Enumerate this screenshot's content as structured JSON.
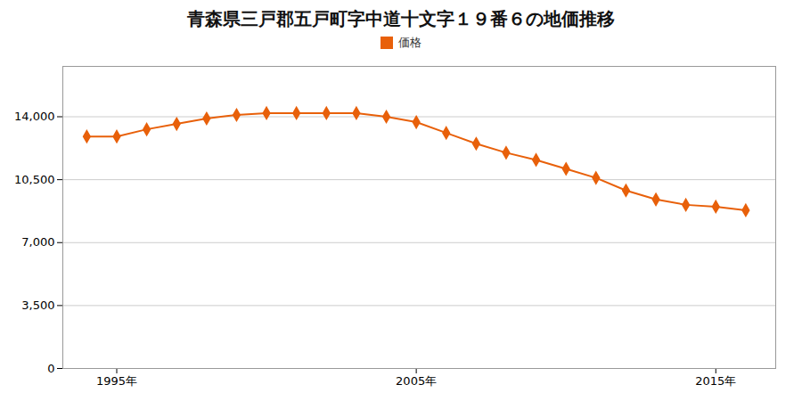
{
  "chart_data": {
    "type": "line",
    "title": "青森県三戸郡五戸町字中道十文字１９番６の地価推移",
    "x": [
      1994,
      1995,
      1996,
      1997,
      1998,
      1999,
      2000,
      2001,
      2002,
      2003,
      2004,
      2005,
      2006,
      2007,
      2008,
      2009,
      2010,
      2011,
      2012,
      2013,
      2014,
      2015,
      2016
    ],
    "series": [
      {
        "name": "価格",
        "color": "#e8600a",
        "marker": "diamond",
        "values": [
          12900,
          12900,
          13300,
          13600,
          13900,
          14100,
          14200,
          14200,
          14200,
          14200,
          14000,
          13700,
          13100,
          12500,
          12000,
          11600,
          11100,
          10600,
          9900,
          9400,
          9100,
          9000,
          8800
        ]
      }
    ],
    "xlim": [
      1993.2,
      2017.0
    ],
    "xticks": [
      {
        "value": 1995,
        "label": "1995年"
      },
      {
        "value": 2005,
        "label": "2005年"
      },
      {
        "value": 2015,
        "label": "2015年"
      }
    ],
    "ylim": [
      0,
      16800
    ],
    "yticks": [
      0,
      {
        "value": 3500,
        "label": "3,500"
      },
      {
        "value": 7000,
        "label": "7,000"
      },
      {
        "value": 10500,
        "label": "10,500"
      },
      {
        "value": 14000,
        "label": "14,000"
      }
    ],
    "grid": true,
    "legend": "top"
  }
}
